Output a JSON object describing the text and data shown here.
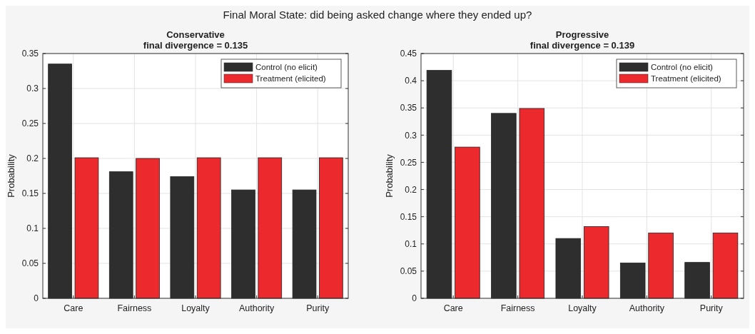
{
  "chart_data": [
    {
      "type": "bar",
      "title": "Conservative",
      "subtitle": "final divergence = 0.135",
      "annotations": [
        "Final Moral State: did being asked change where they ended up?"
      ],
      "ylabel": "Probability",
      "categories": [
        "Care",
        "Fairness",
        "Loyalty",
        "Authority",
        "Purity"
      ],
      "series": [
        {
          "name": "Control (no elicit)",
          "color": "#2e2e2e",
          "values": [
            0.335,
            0.181,
            0.174,
            0.155,
            0.155
          ]
        },
        {
          "name": "Treatment (elicited)",
          "color": "#ec2a2e",
          "values": [
            0.201,
            0.2,
            0.201,
            0.201,
            0.201
          ]
        }
      ],
      "ylim": [
        0,
        0.35
      ],
      "yticks": [
        0,
        0.05,
        0.1,
        0.15,
        0.2,
        0.25,
        0.3,
        0.35
      ],
      "grid": true,
      "legend": "top right"
    },
    {
      "type": "bar",
      "title": "Progressive",
      "subtitle": "final divergence = 0.139",
      "ylabel": "Probability",
      "categories": [
        "Care",
        "Fairness",
        "Loyalty",
        "Authority",
        "Purity"
      ],
      "series": [
        {
          "name": "Control (no elicit)",
          "color": "#2e2e2e",
          "values": [
            0.419,
            0.34,
            0.11,
            0.065,
            0.066
          ]
        },
        {
          "name": "Treatment (elicited)",
          "color": "#ec2a2e",
          "values": [
            0.278,
            0.349,
            0.132,
            0.12,
            0.12
          ]
        }
      ],
      "ylim": [
        0,
        0.45
      ],
      "yticks": [
        0,
        0.05,
        0.1,
        0.15,
        0.2,
        0.25,
        0.3,
        0.35,
        0.4,
        0.45
      ],
      "grid": true,
      "legend": "top right"
    }
  ]
}
